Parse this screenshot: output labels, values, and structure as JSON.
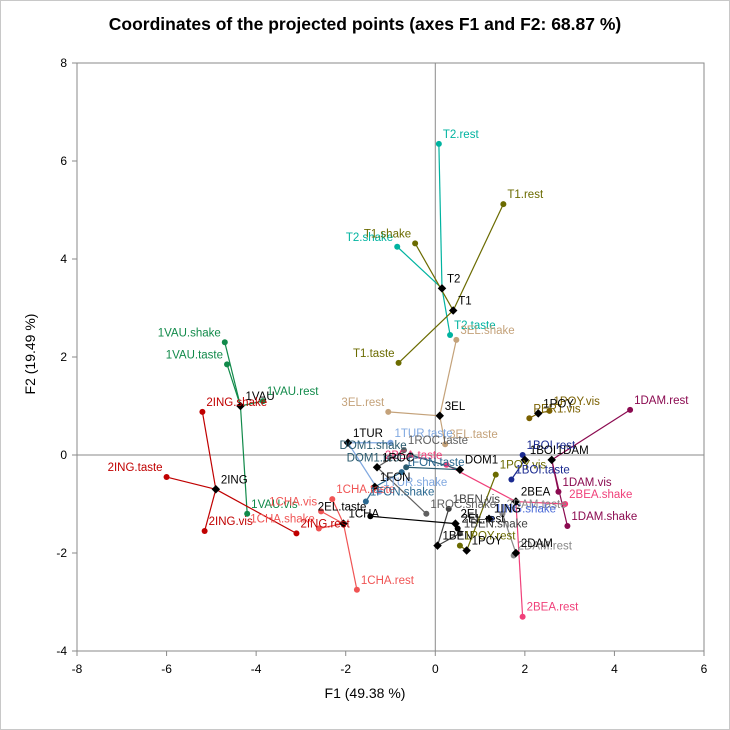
{
  "chart_data": {
    "type": "scatter",
    "title": "Coordinates of the projected points (axes F1 and F2: 68.87 %)",
    "xlabel": "F1 (49.38 %)",
    "ylabel": "F2 (19.49 %)",
    "xlim": [
      -8,
      6
    ],
    "ylim": [
      -4,
      8
    ],
    "x_ticks": [
      "-8",
      "-6",
      "-4",
      "-2",
      "0",
      "2",
      "4",
      "6"
    ],
    "y_ticks": [
      "-4",
      "-2",
      "0",
      "2",
      "4",
      "6",
      "8"
    ],
    "grid": false,
    "legend": "none",
    "groups": [
      {
        "centroid": {
          "label": "T2",
          "x": 0.15,
          "y": 3.4
        },
        "color": "#00b3a0",
        "points": [
          {
            "label": "T2.rest",
            "x": 0.08,
            "y": 6.35
          },
          {
            "label": "T2.shake",
            "x": -0.85,
            "y": 4.25
          },
          {
            "label": "T2.taste",
            "x": 0.33,
            "y": 2.45
          }
        ]
      },
      {
        "centroid": {
          "label": "T1",
          "x": 0.4,
          "y": 2.95
        },
        "color": "#6b6b00",
        "points": [
          {
            "label": "T1.rest",
            "x": 1.52,
            "y": 5.12
          },
          {
            "label": "T1.shake",
            "x": -0.45,
            "y": 4.32
          },
          {
            "label": "T1.taste",
            "x": -0.82,
            "y": 1.88
          }
        ]
      },
      {
        "centroid": {
          "label": "3EL",
          "x": 0.1,
          "y": 0.8
        },
        "color": "#c4a27a",
        "points": [
          {
            "label": "3EL.shake",
            "x": 0.47,
            "y": 2.35
          },
          {
            "label": "3EL.rest",
            "x": -1.05,
            "y": 0.88
          },
          {
            "label": "3EL.taste",
            "x": 0.22,
            "y": 0.22
          }
        ]
      },
      {
        "centroid": {
          "label": "1VAU",
          "x": -4.35,
          "y": 1.0
        },
        "color": "#118a4a",
        "points": [
          {
            "label": "1VAU.shake",
            "x": -4.7,
            "y": 2.3
          },
          {
            "label": "1VAU.taste",
            "x": -4.65,
            "y": 1.85
          },
          {
            "label": "1VAU.rest",
            "x": -3.85,
            "y": 1.1
          },
          {
            "label": "1VAU.vis",
            "x": -4.2,
            "y": -1.2
          }
        ]
      },
      {
        "centroid": {
          "label": "2ING",
          "x": -4.9,
          "y": -0.7
        },
        "color": "#c00000",
        "points": [
          {
            "label": "2ING.shake",
            "x": -5.2,
            "y": 0.88
          },
          {
            "label": "2ING.taste",
            "x": -6.0,
            "y": -0.45
          },
          {
            "label": "2ING.vis",
            "x": -5.15,
            "y": -1.55
          },
          {
            "label": "2ING.rest",
            "x": -3.1,
            "y": -1.6
          }
        ]
      },
      {
        "centroid": {
          "label": "1CHA",
          "x": -2.05,
          "y": -1.4
        },
        "color": "#f05454",
        "points": [
          {
            "label": "1CHA.taste",
            "x": -2.3,
            "y": -0.9
          },
          {
            "label": "1CHA.vis",
            "x": -2.55,
            "y": -1.15
          },
          {
            "label": "1CHA.shake",
            "x": -2.6,
            "y": -1.5
          },
          {
            "label": "1CHA.rest",
            "x": -1.75,
            "y": -2.75
          }
        ]
      },
      {
        "centroid": {
          "label": "1DAM",
          "x": 2.6,
          "y": -0.1
        },
        "color": "#8b0a50",
        "points": [
          {
            "label": "1DAM.rest",
            "x": 4.35,
            "y": 0.92
          },
          {
            "label": "1DAM.shake",
            "x": 2.95,
            "y": -1.45
          },
          {
            "label": "1DAM.vis",
            "x": 2.75,
            "y": -0.75
          }
        ]
      },
      {
        "centroid": {
          "label": "2BEA",
          "x": 1.8,
          "y": -0.95
        },
        "color": "#f0407a",
        "points": [
          {
            "label": "2BEA.rest",
            "x": 1.95,
            "y": -3.3
          },
          {
            "label": "2BEA.shake",
            "x": 2.9,
            "y": -1.0
          },
          {
            "label": "2BEA.taste",
            "x": 0.25,
            "y": -0.2
          }
        ]
      },
      {
        "centroid": {
          "label": "1BEN",
          "x": 0.05,
          "y": -1.85
        },
        "color": "#404040",
        "points": [
          {
            "label": "1BEN.shake",
            "x": 0.55,
            "y": -1.6
          },
          {
            "label": "1BEN.vis",
            "x": 0.3,
            "y": -1.1
          }
        ]
      },
      {
        "centroid": {
          "label": "1POY",
          "x": 0.7,
          "y": -1.95
        },
        "color": "#6b6b00",
        "points": [
          {
            "label": "1POY.rest",
            "x": 0.55,
            "y": -1.85
          },
          {
            "label": "1POY.vis",
            "x": 1.35,
            "y": -0.4
          }
        ]
      },
      {
        "centroid": {
          "label": "2DAM",
          "x": 1.8,
          "y": -2.0
        },
        "color": "#888888",
        "points": [
          {
            "label": "2DAM.rest",
            "x": 1.75,
            "y": -2.05
          },
          {
            "label": "2DAM.taste",
            "x": 1.5,
            "y": -1.2
          }
        ]
      },
      {
        "centroid": {
          "label": "1TUR",
          "x": -1.95,
          "y": 0.25
        },
        "color": "#80a8e0",
        "points": [
          {
            "label": "1TUR.taste",
            "x": -1.0,
            "y": 0.25
          },
          {
            "label": "1TUR.shake",
            "x": -1.25,
            "y": -0.75
          }
        ]
      },
      {
        "centroid": {
          "label": "1FON",
          "x": -1.35,
          "y": -0.65
        },
        "color": "#2a6890",
        "points": [
          {
            "label": "1FON.shake",
            "x": -1.55,
            "y": -0.95
          },
          {
            "label": "1FON.taste",
            "x": -0.75,
            "y": -0.35
          }
        ]
      },
      {
        "centroid": {
          "label": "DOM1",
          "x": 0.55,
          "y": -0.3
        },
        "color": "#2a5b6e",
        "points": [
          {
            "label": "DOM1.rest",
            "x": -0.65,
            "y": -0.25
          },
          {
            "label": "DOM1.shake",
            "x": -0.55,
            "y": 0.0
          }
        ]
      },
      {
        "centroid": {
          "label": "1ROC",
          "x": -1.3,
          "y": -0.25
        },
        "color": "#606060",
        "points": [
          {
            "label": "1ROC.taste",
            "x": -0.7,
            "y": 0.1
          },
          {
            "label": "1ROC.shake",
            "x": -0.2,
            "y": -1.2
          }
        ]
      },
      {
        "centroid": {
          "label": "2EL",
          "x": 0.45,
          "y": -1.4
        },
        "color": "#000000",
        "points": [
          {
            "label": "2EL.taste",
            "x": -1.45,
            "y": -1.25
          },
          {
            "label": "2EL.rest",
            "x": 0.5,
            "y": -1.5
          }
        ]
      },
      {
        "centroid": {
          "label": "1BOI",
          "x": 2.0,
          "y": -0.1
        },
        "color": "#1a2a90",
        "points": [
          {
            "label": "1BOI.rest",
            "x": 1.95,
            "y": 0.0
          },
          {
            "label": "1BOI.taste",
            "x": 1.7,
            "y": -0.5
          }
        ]
      },
      {
        "centroid": {
          "label": "1POY",
          "x": 2.3,
          "y": 0.85
        },
        "color": "#7a6000",
        "points": [
          {
            "label": "1POY.vis",
            "x": 2.55,
            "y": 0.9
          },
          {
            "label": "PER1.vis",
            "x": 2.1,
            "y": 0.75
          }
        ]
      },
      {
        "centroid": {
          "label": "1ING",
          "x": 1.2,
          "y": -1.3
        },
        "color": "#4a6ad8",
        "points": [
          {
            "label": "1ING.shake",
            "x": 1.25,
            "y": -1.3
          }
        ]
      }
    ]
  }
}
